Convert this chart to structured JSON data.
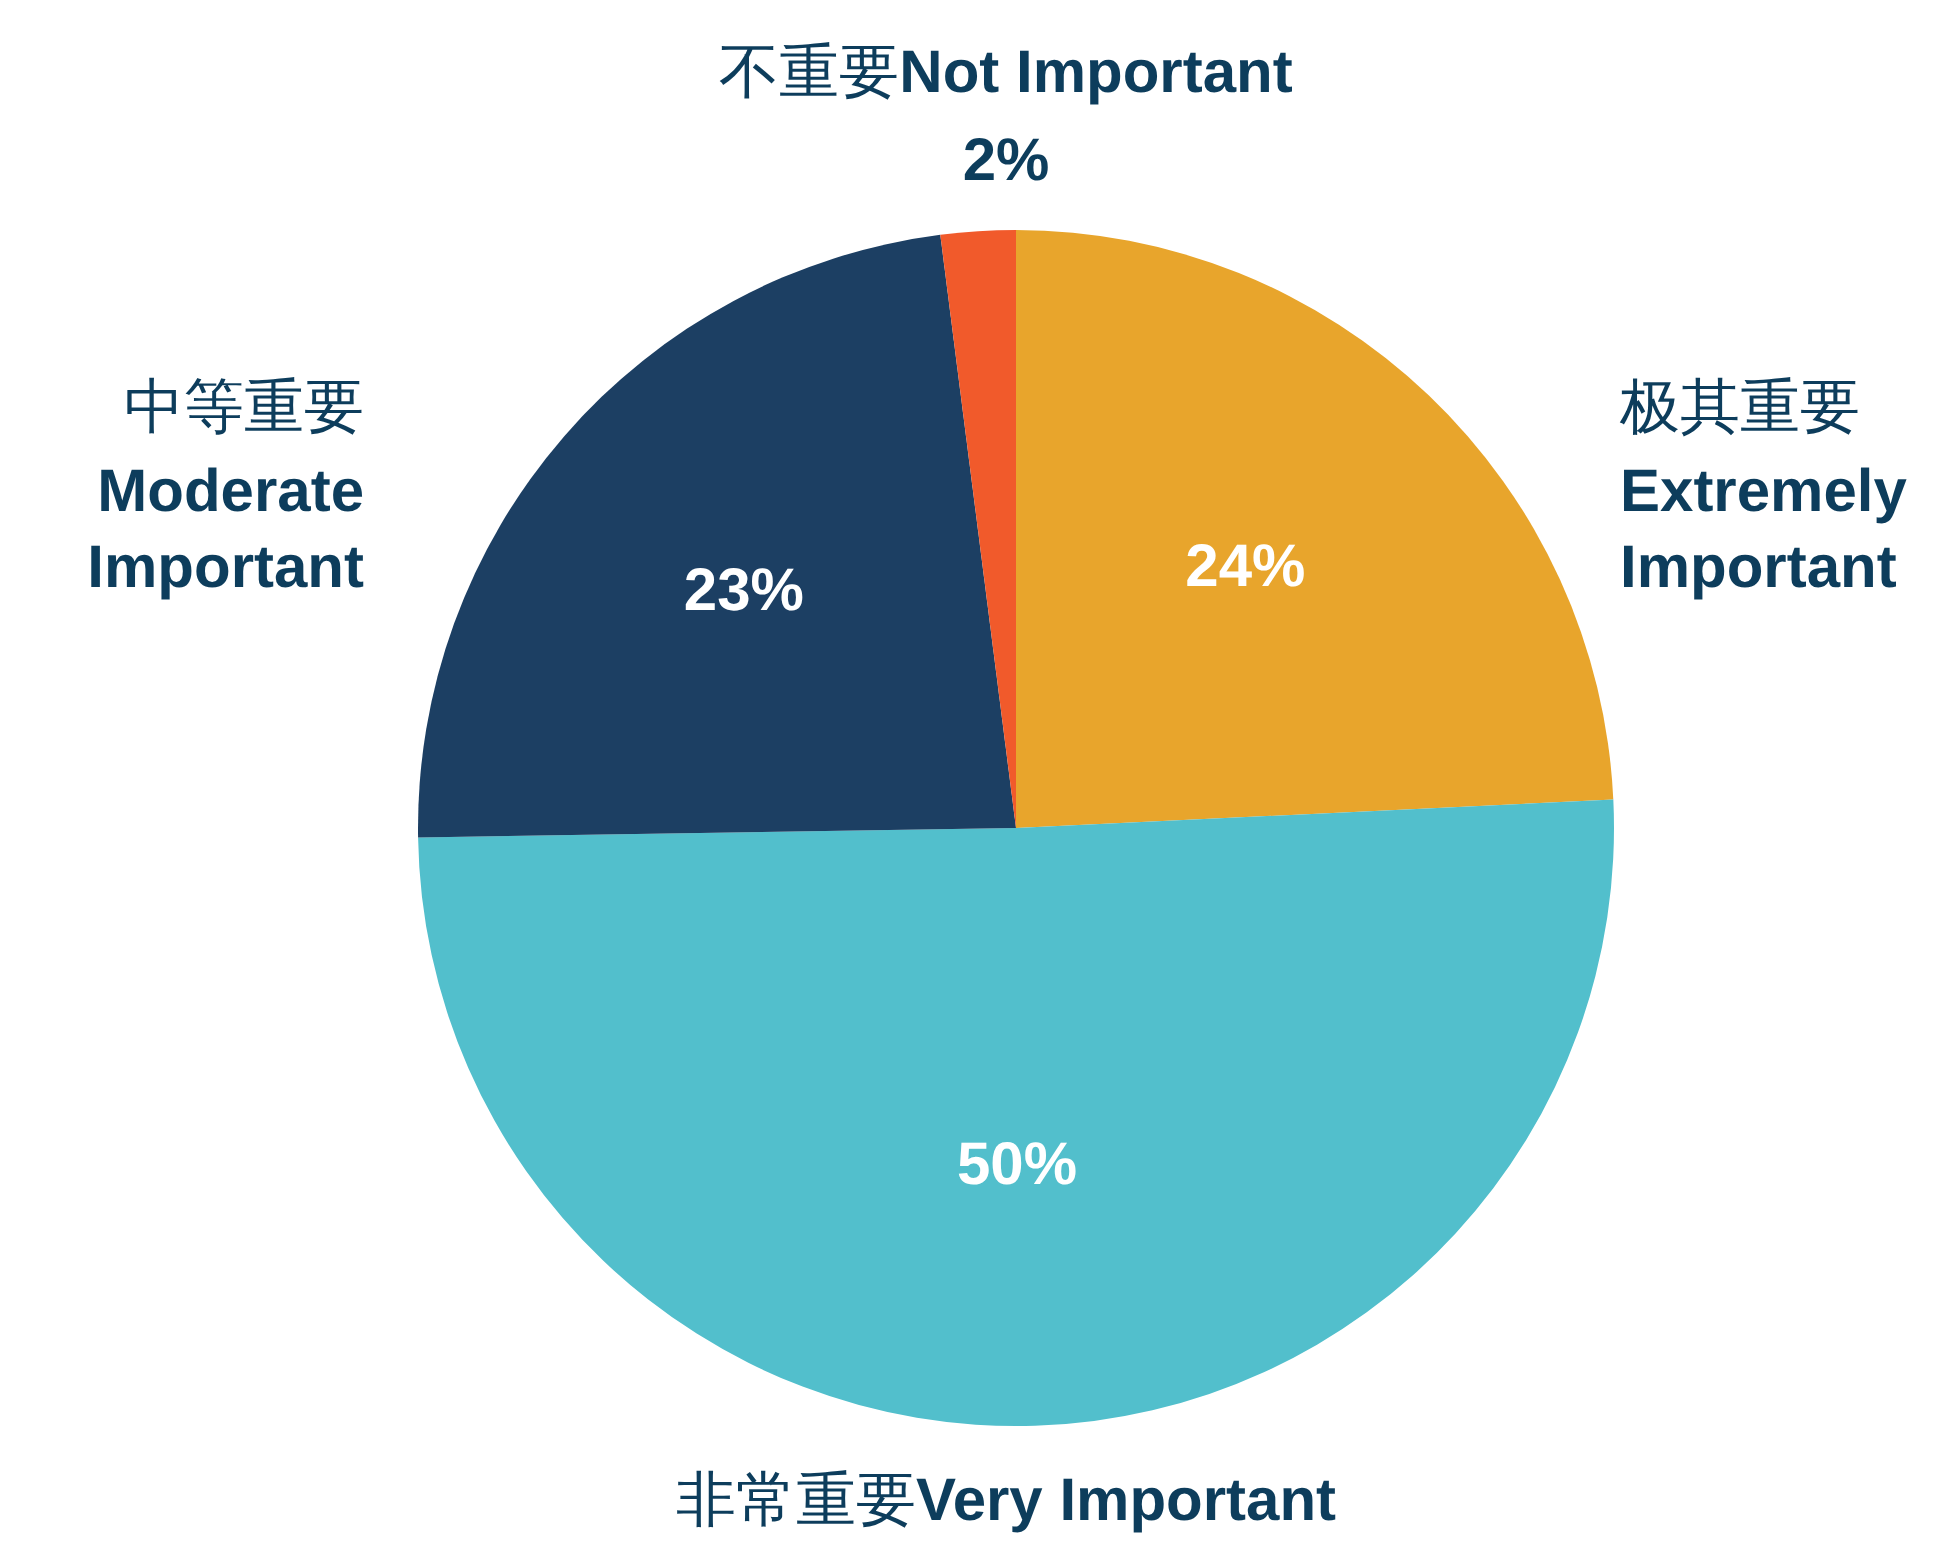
{
  "chart_data": {
    "type": "pie",
    "categories": [
      "极其重要Extremely Important",
      "非常重要Very Important",
      "中等重要Moderate Important",
      "不重要Not Important"
    ],
    "values": [
      24,
      50,
      23,
      2
    ],
    "colors": [
      "#e8a52c",
      "#52bfcc",
      "#1c3f63",
      "#f15a2b"
    ],
    "value_labels": [
      "24%",
      "50%",
      "23%",
      "2%"
    ]
  }
}
